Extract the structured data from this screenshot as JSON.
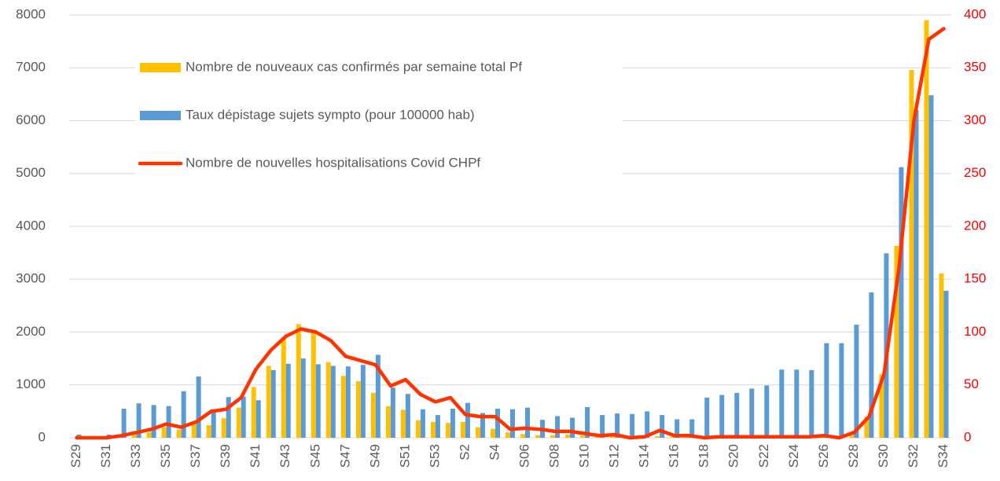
{
  "chart_data": {
    "type": "bar_line",
    "categories": [
      "S29",
      null,
      "S31",
      null,
      "S33",
      null,
      "S35",
      null,
      "S37",
      null,
      "S39",
      null,
      "S41",
      null,
      "S43",
      null,
      "S45",
      null,
      "S47",
      null,
      "S49",
      null,
      "S51",
      null,
      "S53",
      null,
      "S2",
      null,
      "S4",
      null,
      "S06",
      null,
      "S08",
      null,
      "S10",
      null,
      "S12",
      null,
      "S14",
      null,
      "S16",
      null,
      "S18",
      null,
      "S20",
      null,
      "S22",
      null,
      "S24",
      null,
      "S26",
      null,
      "S28",
      null,
      "S30",
      null,
      "S32",
      null,
      "S34"
    ],
    "series": [
      {
        "name": "Nombre de nouveaux cas confirmés par semaine total Pf",
        "type": "bar",
        "color": "#FFC000",
        "values": [
          0,
          0,
          10,
          20,
          60,
          100,
          200,
          150,
          300,
          240,
          370,
          570,
          960,
          1360,
          1900,
          2150,
          2000,
          1430,
          1170,
          1070,
          850,
          600,
          530,
          330,
          300,
          280,
          300,
          200,
          170,
          100,
          70,
          50,
          50,
          60,
          40,
          30,
          30,
          20,
          20,
          30,
          20,
          10,
          10,
          10,
          10,
          10,
          10,
          10,
          10,
          10,
          20,
          30,
          70,
          400,
          1200,
          3630,
          6960,
          7900,
          3110
        ]
      },
      {
        "name": "Taux dépistage sujets sympto (pour 100000 hab)",
        "type": "bar",
        "color": "#5B9BD5",
        "values": [
          60,
          20,
          60,
          550,
          650,
          620,
          600,
          880,
          1160,
          500,
          770,
          780,
          710,
          1280,
          1400,
          1500,
          1390,
          1360,
          1350,
          1380,
          1570,
          950,
          830,
          540,
          430,
          550,
          660,
          470,
          550,
          540,
          570,
          340,
          410,
          380,
          580,
          430,
          460,
          450,
          500,
          430,
          350,
          350,
          760,
          810,
          850,
          930,
          990,
          1290,
          1290,
          1280,
          1790,
          1790,
          2140,
          2750,
          3490,
          5120,
          6200,
          6480,
          2780
        ]
      },
      {
        "name": "Nombre de nouvelles hospitalisations Covid CHPf",
        "type": "line",
        "axis": "y2",
        "color": "#FF3300",
        "values": [
          0,
          0,
          0,
          2,
          5,
          8,
          13,
          10,
          15,
          25,
          27,
          38,
          65,
          83,
          96,
          103,
          100,
          92,
          77,
          73,
          69,
          49,
          55,
          41,
          34,
          38,
          22,
          20,
          20,
          8,
          9,
          8,
          6,
          6,
          4,
          2,
          3,
          0,
          1,
          7,
          2,
          2,
          0,
          1,
          1,
          1,
          1,
          1,
          1,
          1,
          2,
          0,
          5,
          20,
          60,
          160,
          300,
          377,
          387
        ]
      }
    ],
    "ylim": [
      0,
      8000
    ],
    "yticks": [
      0,
      1000,
      2000,
      3000,
      4000,
      5000,
      6000,
      7000,
      8000
    ],
    "y2lim": [
      0,
      400
    ],
    "y2ticks": [
      0,
      50,
      100,
      150,
      200,
      250,
      300,
      350,
      400
    ],
    "y2_color": "#FF0000",
    "grid": true
  }
}
